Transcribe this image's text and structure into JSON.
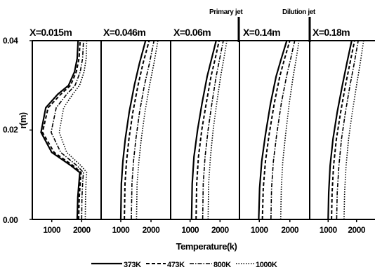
{
  "chart_data": {
    "type": "line",
    "xlabel": "Temperature(k)",
    "ylabel": "r(m)",
    "xlim": [
      350,
      2650
    ],
    "ylim": [
      0,
      0.04
    ],
    "xticks": [
      1000,
      2000
    ],
    "yticks": [
      "0.00",
      "0.02",
      "0.04"
    ],
    "legend_position": "bottom",
    "annotations": [
      "Primary jet",
      "Dilution jet"
    ],
    "series_styles": [
      "solid",
      "dash",
      "dashdot",
      "dot"
    ],
    "panels": [
      {
        "title": "X=0.015m",
        "series": [
          {
            "name": "373K",
            "points": [
              [
                1850,
                0
              ],
              [
                1870,
                0.005
              ],
              [
                1920,
                0.009
              ],
              [
                1940,
                0.0105
              ],
              [
                1650,
                0.012
              ],
              [
                1000,
                0.015
              ],
              [
                640,
                0.0195
              ],
              [
                800,
                0.025
              ],
              [
                1200,
                0.028
              ],
              [
                1560,
                0.03
              ],
              [
                1760,
                0.033
              ],
              [
                1850,
                0.036
              ],
              [
                1880,
                0.04
              ]
            ]
          },
          {
            "name": "473K",
            "points": [
              [
                1900,
                0
              ],
              [
                1920,
                0.005
              ],
              [
                1960,
                0.009
              ],
              [
                1980,
                0.0105
              ],
              [
                1720,
                0.012
              ],
              [
                1080,
                0.015
              ],
              [
                690,
                0.0195
              ],
              [
                880,
                0.025
              ],
              [
                1300,
                0.028
              ],
              [
                1630,
                0.03
              ],
              [
                1820,
                0.033
              ],
              [
                1910,
                0.036
              ],
              [
                1950,
                0.04
              ]
            ]
          },
          {
            "name": "800K",
            "points": [
              [
                2000,
                0
              ],
              [
                2010,
                0.005
              ],
              [
                2040,
                0.009
              ],
              [
                2060,
                0.0105
              ],
              [
                1850,
                0.012
              ],
              [
                1300,
                0.015
              ],
              [
                980,
                0.0195
              ],
              [
                1150,
                0.025
              ],
              [
                1500,
                0.028
              ],
              [
                1780,
                0.03
              ],
              [
                1950,
                0.033
              ],
              [
                2030,
                0.036
              ],
              [
                2060,
                0.04
              ]
            ]
          },
          {
            "name": "1000K",
            "points": [
              [
                2120,
                0
              ],
              [
                2130,
                0.005
              ],
              [
                2150,
                0.009
              ],
              [
                2170,
                0.0105
              ],
              [
                1980,
                0.012
              ],
              [
                1500,
                0.015
              ],
              [
                1250,
                0.0195
              ],
              [
                1400,
                0.025
              ],
              [
                1700,
                0.028
              ],
              [
                1930,
                0.03
              ],
              [
                2080,
                0.033
              ],
              [
                2150,
                0.036
              ],
              [
                2170,
                0.04
              ]
            ]
          }
        ]
      },
      {
        "title": "X=0.046m",
        "series": [
          {
            "name": "373K",
            "points": [
              [
                1000,
                0
              ],
              [
                1020,
                0.008
              ],
              [
                1070,
                0.013
              ],
              [
                1150,
                0.018
              ],
              [
                1280,
                0.024
              ],
              [
                1450,
                0.03
              ],
              [
                1620,
                0.035
              ],
              [
                1820,
                0.04
              ]
            ]
          },
          {
            "name": "473K",
            "points": [
              [
                1120,
                0
              ],
              [
                1140,
                0.008
              ],
              [
                1190,
                0.013
              ],
              [
                1270,
                0.018
              ],
              [
                1400,
                0.024
              ],
              [
                1570,
                0.03
              ],
              [
                1740,
                0.035
              ],
              [
                1940,
                0.04
              ]
            ]
          },
          {
            "name": "800K",
            "points": [
              [
                1350,
                0
              ],
              [
                1370,
                0.008
              ],
              [
                1420,
                0.013
              ],
              [
                1500,
                0.018
              ],
              [
                1620,
                0.024
              ],
              [
                1780,
                0.03
              ],
              [
                1950,
                0.035
              ],
              [
                2100,
                0.04
              ]
            ]
          },
          {
            "name": "1000K",
            "points": [
              [
                1520,
                0
              ],
              [
                1540,
                0.008
              ],
              [
                1600,
                0.013
              ],
              [
                1680,
                0.018
              ],
              [
                1800,
                0.024
              ],
              [
                1950,
                0.03
              ],
              [
                2100,
                0.035
              ],
              [
                2230,
                0.04
              ]
            ]
          }
        ]
      },
      {
        "title": "X=0.06m",
        "series": [
          {
            "name": "373K",
            "points": [
              [
                1050,
                0
              ],
              [
                1070,
                0.008
              ],
              [
                1130,
                0.014
              ],
              [
                1250,
                0.02
              ],
              [
                1400,
                0.026
              ],
              [
                1570,
                0.032
              ],
              [
                1720,
                0.036
              ],
              [
                1870,
                0.04
              ]
            ]
          },
          {
            "name": "473K",
            "points": [
              [
                1200,
                0
              ],
              [
                1220,
                0.008
              ],
              [
                1280,
                0.014
              ],
              [
                1390,
                0.02
              ],
              [
                1540,
                0.026
              ],
              [
                1700,
                0.032
              ],
              [
                1840,
                0.036
              ],
              [
                1970,
                0.04
              ]
            ]
          },
          {
            "name": "800K",
            "points": [
              [
                1420,
                0
              ],
              [
                1440,
                0.008
              ],
              [
                1500,
                0.014
              ],
              [
                1600,
                0.02
              ],
              [
                1730,
                0.026
              ],
              [
                1870,
                0.032
              ],
              [
                1990,
                0.036
              ],
              [
                2110,
                0.04
              ]
            ]
          },
          {
            "name": "1000K",
            "points": [
              [
                1600,
                0
              ],
              [
                1620,
                0.008
              ],
              [
                1680,
                0.014
              ],
              [
                1770,
                0.02
              ],
              [
                1890,
                0.026
              ],
              [
                2020,
                0.032
              ],
              [
                2130,
                0.036
              ],
              [
                2230,
                0.04
              ]
            ]
          }
        ]
      },
      {
        "title": "X=0.14m",
        "series": [
          {
            "name": "373K",
            "points": [
              [
                980,
                0
              ],
              [
                1010,
                0.007
              ],
              [
                1080,
                0.013
              ],
              [
                1200,
                0.019
              ],
              [
                1370,
                0.026
              ],
              [
                1550,
                0.032
              ],
              [
                1720,
                0.036
              ],
              [
                1900,
                0.04
              ]
            ]
          },
          {
            "name": "473K",
            "points": [
              [
                1100,
                0
              ],
              [
                1130,
                0.007
              ],
              [
                1200,
                0.013
              ],
              [
                1320,
                0.019
              ],
              [
                1490,
                0.026
              ],
              [
                1670,
                0.032
              ],
              [
                1830,
                0.036
              ],
              [
                2000,
                0.04
              ]
            ]
          },
          {
            "name": "800K",
            "points": [
              [
                1380,
                0
              ],
              [
                1400,
                0.007
              ],
              [
                1460,
                0.013
              ],
              [
                1570,
                0.019
              ],
              [
                1720,
                0.026
              ],
              [
                1890,
                0.032
              ],
              [
                2030,
                0.036
              ],
              [
                2160,
                0.04
              ]
            ]
          },
          {
            "name": "1000K",
            "points": [
              [
                1700,
                0
              ],
              [
                1720,
                0.007
              ],
              [
                1770,
                0.013
              ],
              [
                1860,
                0.019
              ],
              [
                1980,
                0.026
              ],
              [
                2110,
                0.032
              ],
              [
                2210,
                0.036
              ],
              [
                2300,
                0.04
              ]
            ]
          }
        ]
      },
      {
        "title": "X=0.18m",
        "series": [
          {
            "name": "373K",
            "points": [
              [
                1000,
                0
              ],
              [
                1020,
                0.006
              ],
              [
                1070,
                0.012
              ],
              [
                1170,
                0.018
              ],
              [
                1320,
                0.024
              ],
              [
                1500,
                0.03
              ],
              [
                1660,
                0.035
              ],
              [
                1830,
                0.04
              ]
            ]
          },
          {
            "name": "473K",
            "points": [
              [
                1120,
                0
              ],
              [
                1140,
                0.006
              ],
              [
                1190,
                0.012
              ],
              [
                1290,
                0.018
              ],
              [
                1440,
                0.024
              ],
              [
                1610,
                0.03
              ],
              [
                1770,
                0.035
              ],
              [
                1930,
                0.04
              ]
            ]
          },
          {
            "name": "800K",
            "points": [
              [
                1300,
                0
              ],
              [
                1320,
                0.006
              ],
              [
                1380,
                0.012
              ],
              [
                1470,
                0.018
              ],
              [
                1610,
                0.024
              ],
              [
                1770,
                0.03
              ],
              [
                1920,
                0.035
              ],
              [
                2060,
                0.04
              ]
            ]
          },
          {
            "name": "1000K",
            "points": [
              [
                1560,
                0
              ],
              [
                1580,
                0.006
              ],
              [
                1630,
                0.012
              ],
              [
                1720,
                0.018
              ],
              [
                1850,
                0.024
              ],
              [
                2000,
                0.03
              ],
              [
                2130,
                0.035
              ],
              [
                2250,
                0.04
              ]
            ]
          }
        ]
      }
    ]
  }
}
